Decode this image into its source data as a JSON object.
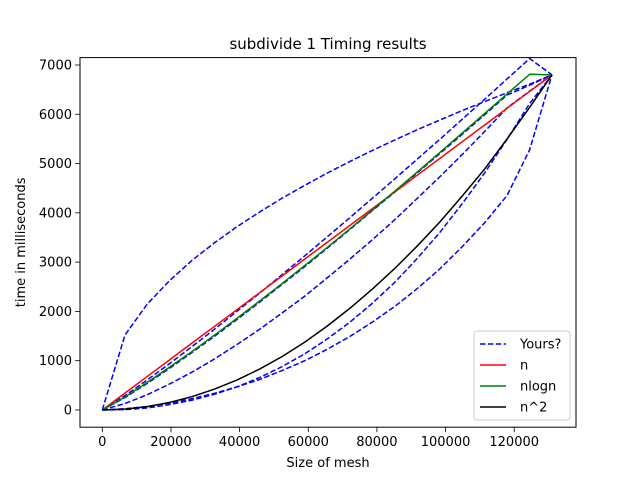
{
  "chart_data": {
    "type": "line",
    "title": "subdivide 1 Timing results",
    "xlabel": "Size of mesh",
    "ylabel": "time in milliseconds",
    "xlim": [
      -6500,
      138000
    ],
    "ylim": [
      -350,
      7150
    ],
    "x_ticks": [
      0,
      20000,
      40000,
      60000,
      80000,
      100000,
      120000
    ],
    "x_tick_labels": [
      "0",
      "20000",
      "40000",
      "60000",
      "80000",
      "100000",
      "120000"
    ],
    "y_ticks": [
      0,
      1000,
      2000,
      3000,
      4000,
      5000,
      6000,
      7000
    ],
    "y_tick_labels": [
      "0",
      "1000",
      "2000",
      "3000",
      "4000",
      "5000",
      "6000",
      "7000"
    ],
    "grid": false,
    "legend_position": "lower-right",
    "x": [
      0,
      6600,
      13100,
      19700,
      26200,
      32800,
      39300,
      45900,
      52400,
      59000,
      65500,
      72100,
      78600,
      85200,
      91700,
      98300,
      104800,
      111400,
      117900,
      124500,
      131000
    ],
    "series": [
      {
        "name": "Yours?",
        "color": "#0000ff",
        "dash": "dashed",
        "values": [
          0,
          1520,
          2149,
          2632,
          3039,
          3398,
          3722,
          4020,
          4298,
          4559,
          4806,
          5041,
          5264,
          5478,
          5684,
          5882,
          6073,
          6258,
          6437,
          6611,
          6800
        ]
      },
      {
        "name": "",
        "color": "#0000ff",
        "dash": "dashed",
        "values": [
          0,
          290,
          610,
          945,
          1290,
          1645,
          2006,
          2374,
          2748,
          3128,
          3512,
          3900,
          4292,
          4688,
          5087,
          5490,
          5896,
          6305,
          6716,
          7131,
          6800
        ]
      },
      {
        "name": "",
        "color": "#0000ff",
        "dash": "dashed",
        "values": [
          0,
          250,
          540,
          850,
          1170,
          1500,
          1840,
          2190,
          2550,
          2910,
          3280,
          3660,
          4040,
          4420,
          4810,
          5200,
          5590,
          5990,
          6390,
          6590,
          6800
        ]
      },
      {
        "name": "",
        "color": "#0000ff",
        "dash": "dashed",
        "values": [
          0,
          130,
          310,
          530,
          770,
          1040,
          1330,
          1640,
          1970,
          2310,
          2680,
          3060,
          3450,
          3860,
          4290,
          4730,
          5180,
          5650,
          6130,
          6470,
          6800
        ]
      },
      {
        "name": "",
        "color": "#0000ff",
        "dash": "dashed",
        "values": [
          0,
          25,
          70,
          140,
          230,
          340,
          470,
          620,
          800,
          1000,
          1230,
          1490,
          1780,
          2100,
          2460,
          2860,
          3310,
          3800,
          4350,
          5280,
          6800
        ]
      },
      {
        "name": "",
        "color": "#0000ff",
        "dash": "dashed",
        "values": [
          0,
          7,
          40,
          110,
          200,
          320,
          470,
          660,
          880,
          1140,
          1440,
          1780,
          2160,
          2590,
          3070,
          3600,
          4180,
          4810,
          5490,
          6220,
          6800
        ]
      },
      {
        "name": "n",
        "color": "#ff0000",
        "dash": "solid",
        "values": [
          0,
          342,
          680,
          1022,
          1361,
          1702,
          2040,
          2382,
          2721,
          3063,
          3401,
          3743,
          4081,
          4423,
          4761,
          5103,
          5441,
          5783,
          6121,
          6463,
          6800
        ]
      },
      {
        "name": "nlogn",
        "color": "#008000",
        "dash": "solid",
        "values": [
          0,
          263,
          559,
          873,
          1190,
          1525,
          1863,
          2213,
          2567,
          2933,
          3296,
          3673,
          4052,
          4439,
          4825,
          5222,
          5615,
          6016,
          6411,
          6811,
          6800
        ]
      },
      {
        "name": "n^2",
        "color": "#000000",
        "dash": "solid",
        "values": [
          0,
          17,
          68,
          154,
          272,
          426,
          610,
          832,
          1085,
          1376,
          1701,
          2061,
          2448,
          2871,
          3323,
          3812,
          4337,
          4890,
          5498,
          6140,
          6800
        ]
      }
    ]
  }
}
